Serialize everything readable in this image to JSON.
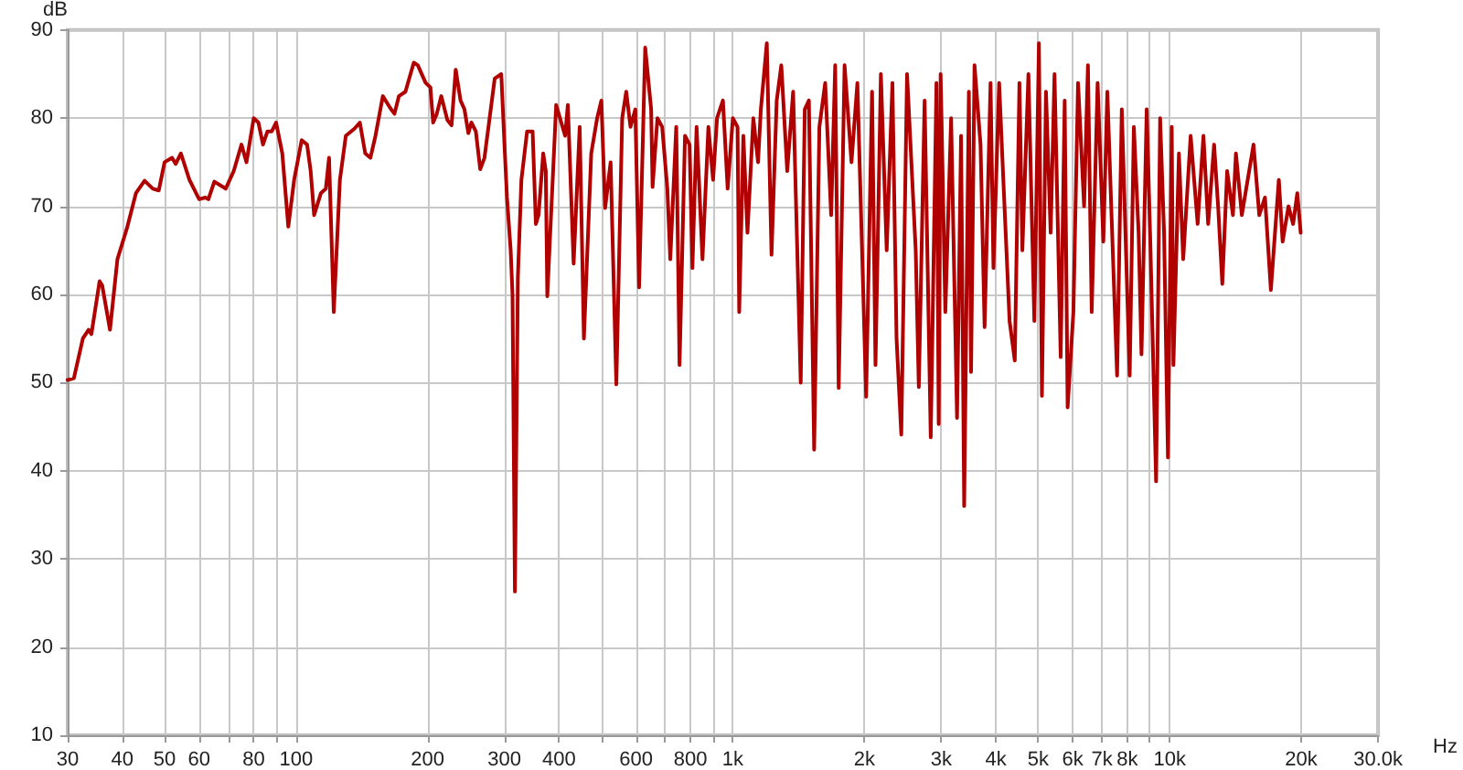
{
  "chart_data": {
    "type": "line",
    "xlabel": "Hz",
    "ylabel": "dB",
    "log": "x",
    "grid": true,
    "marker": "none",
    "line_style": "solid",
    "xlim": [
      30,
      30000
    ],
    "ylim": [
      10,
      90
    ],
    "xticks": [
      30,
      40,
      50,
      60,
      {
        "value": 70,
        "label": null
      },
      80,
      {
        "value": 90,
        "label": null
      },
      100,
      200,
      300,
      400,
      {
        "value": 500,
        "label": null
      },
      600,
      {
        "value": 700,
        "label": null
      },
      800,
      {
        "value": 900,
        "label": null
      },
      {
        "value": 1000,
        "label": "1k"
      },
      {
        "value": 2000,
        "label": "2k"
      },
      {
        "value": 3000,
        "label": "3k"
      },
      {
        "value": 4000,
        "label": "4k"
      },
      {
        "value": 5000,
        "label": "5k"
      },
      {
        "value": 6000,
        "label": "6k"
      },
      {
        "value": 7000,
        "label": "7k"
      },
      {
        "value": 8000,
        "label": "8k"
      },
      {
        "value": 9000,
        "label": null
      },
      {
        "value": 10000,
        "label": "10k"
      },
      {
        "value": 20000,
        "label": "20k"
      },
      {
        "value": 30000,
        "label": "30.0k"
      }
    ],
    "yticks": [
      10,
      20,
      30,
      40,
      50,
      60,
      70,
      80,
      90
    ],
    "series": [
      {
        "color": "#b00000",
        "x": [
          30,
          31,
          32.5,
          33.5,
          34,
          35.5,
          36,
          37.5,
          39,
          41,
          43,
          45,
          47,
          48.5,
          50,
          52,
          53,
          54.5,
          57,
          60,
          62,
          63,
          65,
          69,
          72,
          75,
          77,
          80,
          82,
          84,
          86,
          88,
          90,
          93,
          96,
          99,
          103,
          106,
          108,
          110,
          114,
          117,
          119,
          122,
          126,
          130,
          136,
          140,
          144,
          148,
          152,
          158,
          165,
          168,
          172,
          178,
          186,
          190,
          198,
          203,
          206,
          210,
          215,
          222,
          227,
          232,
          238,
          243,
          248,
          252,
          258,
          264,
          270,
          285,
          295,
          300,
          304,
          310,
          313,
          317,
          322,
          328,
          338,
          348,
          354,
          359,
          368,
          373,
          376,
          394,
          413,
          419,
          432,
          446,
          456,
          474,
          489,
          500,
          510,
          525,
          541,
          558,
          570,
          583,
          598,
          610,
          630,
          650,
          655,
          672,
          689,
          708,
          719,
          742,
          755,
          777,
          796,
          808,
          826,
          852,
          879,
          901,
          920,
          949,
          973,
          1000,
          1025,
          1034,
          1057,
          1080,
          1114,
          1142,
          1159,
          1196,
          1226,
          1260,
          1291,
          1332,
          1374,
          1430,
          1461,
          1493,
          1535,
          1578,
          1627,
          1679,
          1715,
          1747,
          1802,
          1869,
          1928,
          2019,
          2083,
          2121,
          2182,
          2250,
          2319,
          2370,
          2430,
          2505,
          2622,
          2665,
          2748,
          2838,
          2925,
          2960,
          2990,
          3065,
          3160,
          3260,
          3330,
          3385,
          3470,
          3510,
          3575,
          3690,
          3770,
          3890,
          3950,
          4070,
          4170,
          4300,
          4420,
          4530,
          4600,
          4750,
          4900,
          5020,
          5100,
          5210,
          5340,
          5450,
          5630,
          5750,
          5840,
          6020,
          6170,
          6370,
          6500,
          6630,
          6840,
          7050,
          7200,
          7420,
          7580,
          7770,
          8100,
          8280,
          8490,
          8620,
          8860,
          9030,
          9310,
          9510,
          9710,
          9910,
          10110,
          10200,
          10500,
          10740,
          11170,
          11590,
          11950,
          12250,
          12640,
          12910,
          13200,
          13540,
          13960,
          14180,
          14630,
          15560,
          16040,
          16530,
          17050,
          17780,
          18140,
          18710,
          19170,
          19600,
          19950
        ],
        "values": [
          50.3,
          50.5,
          55,
          56,
          55.5,
          61.5,
          61,
          56,
          64,
          67.5,
          71.5,
          72.9,
          72,
          71.8,
          75,
          75.5,
          74.8,
          76,
          73,
          70.8,
          71,
          70.8,
          72.8,
          72,
          74,
          77,
          75,
          80,
          79.5,
          77,
          78.5,
          78.5,
          79.5,
          76,
          67.7,
          73,
          77.5,
          77,
          74,
          69,
          71.5,
          72,
          75.5,
          58,
          73,
          78,
          78.8,
          79.5,
          76,
          75.5,
          78,
          82.5,
          81,
          80.5,
          82.5,
          83,
          86.3,
          86,
          84,
          83.5,
          79.5,
          80.5,
          82.5,
          79.8,
          79.2,
          85.5,
          82,
          81,
          78.3,
          79.5,
          78.5,
          74.2,
          75.5,
          84.5,
          85,
          77,
          71,
          65,
          60,
          26.3,
          62,
          73,
          78.5,
          78.5,
          68,
          69,
          76,
          74,
          59.8,
          81.5,
          78,
          81.5,
          63.5,
          79,
          55,
          76,
          80,
          82,
          69.8,
          75,
          49.8,
          80,
          83,
          79,
          81,
          60.8,
          88,
          81,
          72.2,
          80,
          79,
          72,
          64,
          79,
          52,
          78,
          77,
          63,
          79,
          64,
          79,
          73,
          80,
          82,
          72,
          80,
          79,
          58,
          78,
          67,
          80,
          75,
          81,
          88.5,
          64.5,
          82,
          86,
          74,
          83,
          50,
          81,
          82,
          42.4,
          79,
          84,
          69,
          86,
          49.4,
          86,
          75,
          84,
          48.4,
          83,
          52,
          85,
          65,
          84,
          55,
          44.1,
          85,
          65,
          49.5,
          82,
          43.8,
          84,
          45.3,
          85,
          58,
          80,
          46,
          78,
          36,
          83,
          51.2,
          86,
          77,
          56.3,
          84,
          63,
          84,
          72,
          57,
          52.5,
          84,
          65,
          85,
          57,
          88.5,
          48.5,
          83,
          67,
          85,
          52.9,
          82,
          47.2,
          58,
          84,
          70,
          86,
          58,
          84,
          66,
          83,
          64,
          50.8,
          81,
          50.8,
          79,
          67,
          53.2,
          81,
          66,
          38.8,
          80,
          67,
          41.5,
          79,
          52,
          76,
          64,
          78,
          68,
          78,
          68,
          77,
          70,
          61.2,
          74,
          69,
          76,
          69,
          77,
          69,
          71,
          60.5,
          73,
          66,
          70,
          68,
          71.5,
          67
        ]
      }
    ]
  }
}
